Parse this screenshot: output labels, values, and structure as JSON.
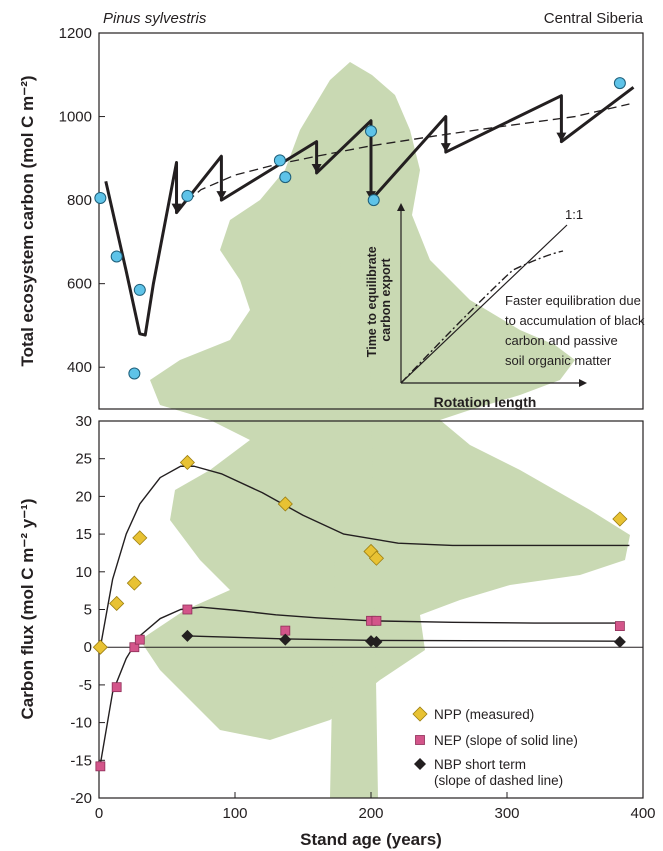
{
  "colors": {
    "tree": "#c9d9b3",
    "axis": "#231f20",
    "measured_points": "#5ec3e8",
    "npp": "#e8c233",
    "nep": "#d3558a",
    "nbp": "#231f20"
  },
  "chart_data": [
    {
      "type": "line",
      "panel": "top",
      "title": "Pinus sylvestris",
      "subtitle": "Central Siberia",
      "ylabel": "Total ecosystem carbon (mol C m⁻²)",
      "ylim": [
        300,
        1200
      ],
      "yticks": [
        400,
        600,
        800,
        1000,
        1200
      ],
      "xlim": [
        0,
        400
      ],
      "grid": false,
      "series": [
        {
          "name": "measured",
          "kind": "scatter",
          "x": [
            1,
            13,
            26,
            30,
            65,
            133,
            137,
            200,
            202,
            383
          ],
          "y": [
            805,
            665,
            385,
            585,
            810,
            895,
            855,
            965,
            800,
            1080
          ]
        },
        {
          "name": "solid line",
          "kind": "line",
          "x": [
            5,
            20,
            30,
            34,
            40,
            57,
            57,
            90,
            90,
            160,
            160,
            200,
            200,
            255,
            255,
            340,
            340,
            393
          ],
          "y": [
            845,
            630,
            480,
            477,
            600,
            890,
            770,
            905,
            800,
            940,
            865,
            990,
            800,
            1000,
            915,
            1050,
            940,
            1070
          ]
        },
        {
          "name": "dashed line",
          "kind": "line",
          "x": [
            57,
            75,
            100,
            130,
            160,
            200,
            250,
            300,
            350,
            390
          ],
          "y": [
            775,
            825,
            860,
            885,
            905,
            930,
            955,
            978,
            1000,
            1030
          ]
        }
      ],
      "drops": [
        {
          "x": 57,
          "from": 890,
          "to": 770
        },
        {
          "x": 90,
          "from": 905,
          "to": 800
        },
        {
          "x": 160,
          "from": 940,
          "to": 865
        },
        {
          "x": 200,
          "from": 990,
          "to": 800
        },
        {
          "x": 255,
          "from": 1000,
          "to": 915
        },
        {
          "x": 340,
          "from": 1050,
          "to": 940
        }
      ],
      "inset": {
        "xlabel": "Rotation length",
        "ylabel": "Time to equilibrate carbon export",
        "line_label": "1:1",
        "annotation": "Faster equilibration due to accumulation of black carbon and passive soil organic matter"
      }
    },
    {
      "type": "scatter",
      "panel": "bottom",
      "ylabel": "Carbon flux (mol C m⁻² y⁻¹)",
      "xlabel": "Stand age (years)",
      "ylim": [
        -20,
        30
      ],
      "yticks": [
        -20,
        -15,
        -10,
        -5,
        0,
        5,
        10,
        15,
        20,
        25,
        30
      ],
      "xlim": [
        0,
        400
      ],
      "xticks": [
        0,
        100,
        200,
        300,
        400
      ],
      "grid": false,
      "legend_position": "bottom-right",
      "series": [
        {
          "name": "NPP (measured)",
          "marker": "diamond",
          "x": [
            1,
            13,
            26,
            30,
            65,
            137,
            200,
            204,
            383
          ],
          "y": [
            0,
            5.8,
            8.5,
            14.5,
            24.5,
            19,
            12.7,
            11.8,
            17
          ],
          "fit": {
            "x": [
              1,
              10,
              20,
              30,
              45,
              60,
              70,
              90,
              120,
              150,
              180,
              220,
              260,
              300,
              350,
              390
            ],
            "y": [
              0,
              9,
              15,
              19,
              22.5,
              24,
              24,
              23,
              20.5,
              17.5,
              15,
              13.8,
              13.5,
              13.5,
              13.5,
              13.5
            ]
          }
        },
        {
          "name": "NEP (slope of solid line)",
          "marker": "square",
          "x": [
            1,
            13,
            26,
            30,
            65,
            137,
            200,
            204,
            383
          ],
          "y": [
            -15.8,
            -5.3,
            0,
            1,
            5,
            2.2,
            3.5,
            3.5,
            2.8
          ],
          "fit": {
            "x": [
              1,
              10,
              20,
              30,
              45,
              60,
              75,
              100,
              130,
              160,
              200,
              260,
              320,
              383
            ],
            "y": [
              -15.5,
              -6,
              -1.5,
              1.5,
              3.8,
              5,
              5.3,
              4.9,
              4.3,
              3.9,
              3.5,
              3.3,
              3.2,
              3.2
            ]
          }
        },
        {
          "name": "NBP short term\n(slope of dashed line)",
          "marker": "diamond-dark",
          "x": [
            65,
            137,
            200,
            204,
            383
          ],
          "y": [
            1.5,
            1,
            0.8,
            0.7,
            0.7
          ],
          "fit": {
            "x": [
              65,
              137,
              204,
              383
            ],
            "y": [
              1.5,
              1.1,
              0.9,
              0.8
            ]
          }
        }
      ]
    }
  ]
}
